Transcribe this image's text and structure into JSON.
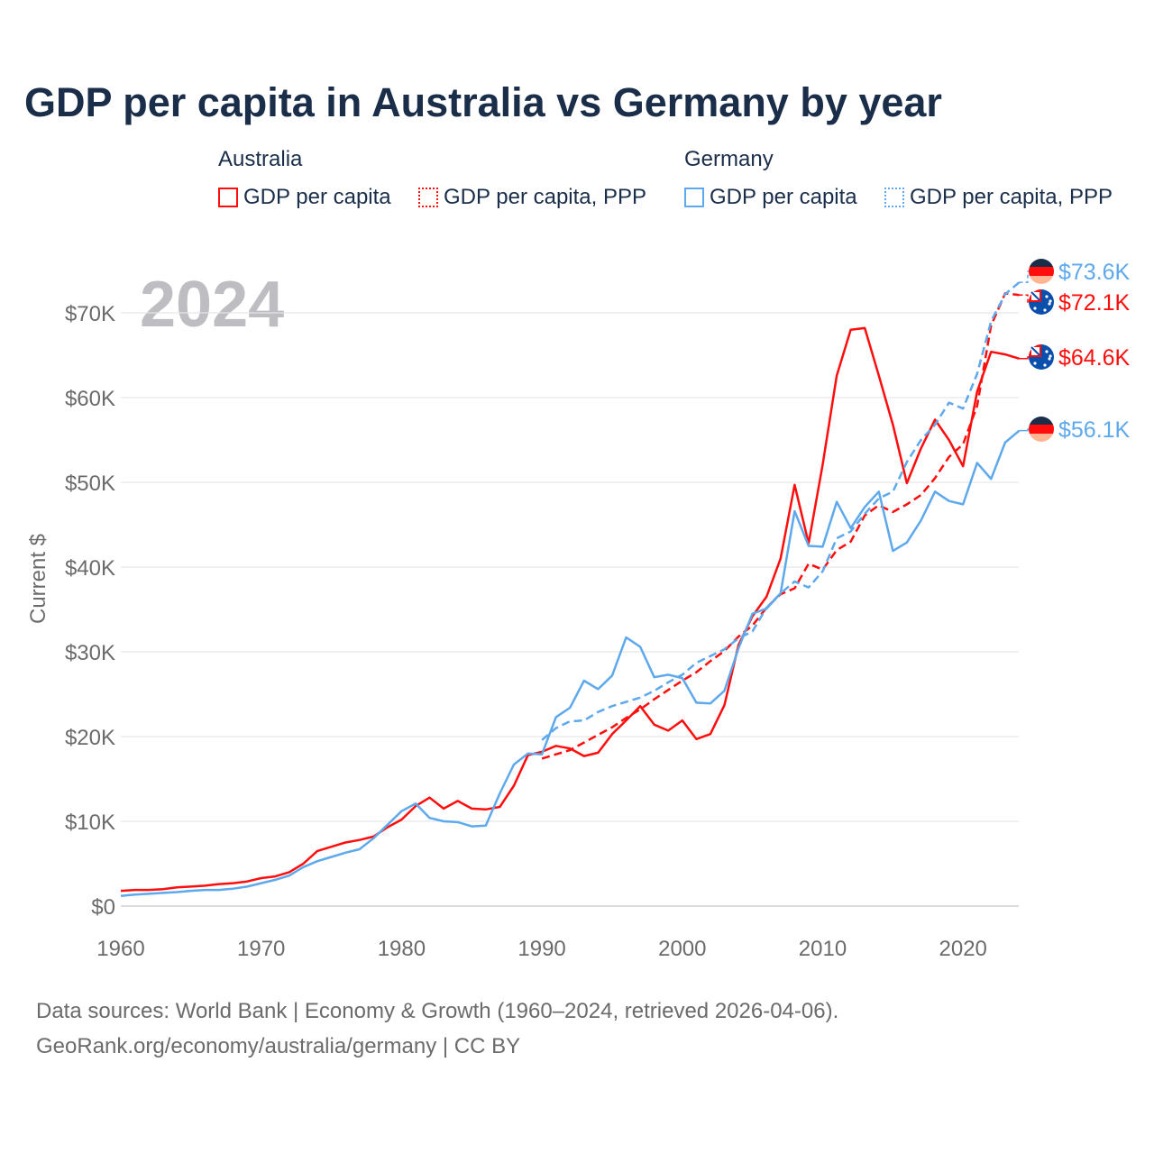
{
  "chart_data": {
    "type": "line",
    "title": "GDP per capita in Australia vs Germany by year",
    "ylabel": "Current $",
    "xlabel": "",
    "year_label": "2024",
    "xlim": [
      1960,
      2024
    ],
    "ylim": [
      0,
      75000
    ],
    "x_ticks": [
      "1960",
      "1970",
      "1980",
      "1990",
      "2000",
      "2010",
      "2020"
    ],
    "y_ticks": [
      "$0",
      "$10K",
      "$20K",
      "$30K",
      "$40K",
      "$50K",
      "$60K",
      "$70K"
    ],
    "legend_groups": [
      {
        "name": "Australia",
        "items": [
          "GDP per capita",
          "GDP per capita, PPP"
        ]
      },
      {
        "name": "Germany",
        "items": [
          "GDP per capita",
          "GDP per capita, PPP"
        ]
      }
    ],
    "series": [
      {
        "name": "Australia GDP per capita",
        "color": "#ff0d0d",
        "dash": false,
        "start": 1960,
        "end_label": "$64.6K",
        "flag": "australia",
        "values_k": [
          1.8,
          1.9,
          1.9,
          2.0,
          2.2,
          2.3,
          2.4,
          2.6,
          2.7,
          2.9,
          3.3,
          3.5,
          4.0,
          5.0,
          6.5,
          7.0,
          7.5,
          7.8,
          8.2,
          9.3,
          10.2,
          11.8,
          12.8,
          11.5,
          12.4,
          11.5,
          11.4,
          11.7,
          14.2,
          17.8,
          18.2,
          18.9,
          18.6,
          17.7,
          18.1,
          20.3,
          21.9,
          23.6,
          21.4,
          20.7,
          21.9,
          19.7,
          20.3,
          23.7,
          30.8,
          34.2,
          36.5,
          41.0,
          49.7,
          42.8,
          52.1,
          62.6,
          68.0,
          68.2,
          62.6,
          56.8,
          49.9,
          54.0,
          57.4,
          55.0,
          51.9,
          60.7,
          65.4,
          65.1,
          64.6
        ]
      },
      {
        "name": "Australia GDP per capita, PPP",
        "color": "#ff0d0d",
        "dash": true,
        "start": 1990,
        "end_label": "$72.1K",
        "flag": "australia",
        "values_k": [
          17.4,
          17.9,
          18.4,
          19.3,
          20.2,
          21.1,
          22.2,
          23.2,
          24.4,
          25.5,
          26.6,
          27.6,
          28.9,
          30.1,
          31.8,
          33.1,
          35.2,
          36.8,
          37.5,
          40.4,
          39.7,
          42.0,
          43.0,
          46.1,
          47.3,
          46.5,
          47.4,
          48.5,
          50.5,
          53.0,
          54.5,
          59.0,
          68.5,
          72.3,
          72.1
        ]
      },
      {
        "name": "Germany GDP per capita",
        "color": "#5ea8ec",
        "dash": false,
        "start": 1960,
        "end_label": "$56.1K",
        "flag": "germany",
        "values_k": [
          1.2,
          1.35,
          1.45,
          1.55,
          1.65,
          1.8,
          1.9,
          1.9,
          2.05,
          2.3,
          2.7,
          3.1,
          3.6,
          4.6,
          5.3,
          5.8,
          6.3,
          6.7,
          8.0,
          9.6,
          11.2,
          12.1,
          10.4,
          10.0,
          9.9,
          9.4,
          9.5,
          13.3,
          16.7,
          18.0,
          17.9,
          22.3,
          23.4,
          26.6,
          25.6,
          27.2,
          31.7,
          30.6,
          27.0,
          27.3,
          26.9,
          24.0,
          23.9,
          25.4,
          30.4,
          34.5,
          35.1,
          36.9,
          46.6,
          42.5,
          42.4,
          47.7,
          44.6,
          47.1,
          48.9,
          41.9,
          42.9,
          45.5,
          48.9,
          47.8,
          47.4,
          52.3,
          50.4,
          54.7,
          56.1
        ]
      },
      {
        "name": "Germany GDP per capita, PPP",
        "color": "#5ea8ec",
        "dash": true,
        "start": 1990,
        "end_label": "$73.6K",
        "flag": "germany",
        "values_k": [
          19.6,
          21.0,
          21.8,
          21.9,
          22.9,
          23.6,
          24.1,
          24.6,
          25.4,
          26.4,
          27.3,
          28.7,
          29.5,
          30.3,
          31.6,
          32.4,
          35.2,
          36.9,
          38.3,
          37.6,
          39.5,
          43.4,
          44.2,
          46.3,
          48.1,
          48.9,
          52.4,
          55.0,
          56.8,
          59.4,
          58.7,
          62.8,
          69.0,
          72.2,
          73.6
        ]
      }
    ]
  },
  "footer": {
    "line1": "Data sources: World Bank | Economy & Growth (1960–2024, retrieved 2026-04-06).",
    "line2": "GeoRank.org/economy/australia/germany | CC BY"
  }
}
